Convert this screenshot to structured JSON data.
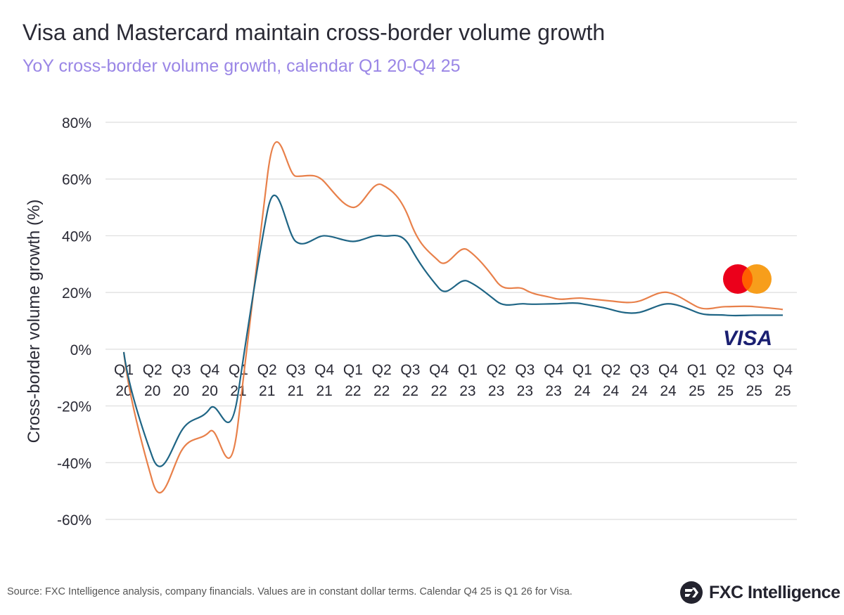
{
  "title": "Visa and Mastercard maintain cross-border volume growth",
  "subtitle": "YoY cross-border volume growth, calendar Q1 20-Q4 25",
  "source": "Source: FXC Intelligence analysis, company financials. Values are in constant dollar terms. Calendar Q4 25 is Q1 26 for Visa.",
  "brand": "FXC Intelligence",
  "chart_data": {
    "type": "line",
    "title": "Visa and Mastercard maintain cross-border volume growth",
    "ylabel": "Cross-border volume growth (%)",
    "xlabel": "",
    "ylim": [
      -60,
      80
    ],
    "yticks": [
      "80%",
      "60%",
      "40%",
      "20%",
      "0%",
      "-20%",
      "-40%",
      "-60%"
    ],
    "ytick_values": [
      80,
      60,
      40,
      20,
      0,
      -20,
      -40,
      -60
    ],
    "grid": true,
    "legend": "logos at right end of lines",
    "categories": [
      [
        "Q1",
        "20"
      ],
      [
        "Q2",
        "20"
      ],
      [
        "Q3",
        "20"
      ],
      [
        "Q4",
        "20"
      ],
      [
        "Q1",
        "21"
      ],
      [
        "Q2",
        "21"
      ],
      [
        "Q3",
        "21"
      ],
      [
        "Q4",
        "21"
      ],
      [
        "Q1",
        "22"
      ],
      [
        "Q2",
        "22"
      ],
      [
        "Q3",
        "22"
      ],
      [
        "Q4",
        "22"
      ],
      [
        "Q1",
        "23"
      ],
      [
        "Q2",
        "23"
      ],
      [
        "Q3",
        "23"
      ],
      [
        "Q4",
        "23"
      ],
      [
        "Q1",
        "24"
      ],
      [
        "Q2",
        "24"
      ],
      [
        "Q3",
        "24"
      ],
      [
        "Q4",
        "24"
      ],
      [
        "Q1",
        "25"
      ],
      [
        "Q2",
        "25"
      ],
      [
        "Q3",
        "25"
      ],
      [
        "Q4",
        "25"
      ]
    ],
    "series": [
      {
        "name": "Mastercard",
        "logo": "mastercard-logo",
        "color": "#e8804a",
        "values": [
          -1,
          -46.5,
          -36,
          -29,
          -25,
          60,
          61,
          59,
          50,
          58,
          45,
          31,
          35,
          24,
          21,
          18,
          18,
          17,
          17,
          20,
          15,
          15,
          15,
          14
        ]
      },
      {
        "name": "VISA",
        "logo": "visa-logo",
        "color": "#1f6585",
        "values": [
          -1,
          -38,
          -29,
          -21,
          -15,
          48,
          38,
          40,
          38,
          40,
          36,
          21.5,
          24,
          17,
          16,
          16,
          16,
          14,
          13,
          16,
          13,
          12,
          12,
          12
        ]
      }
    ]
  },
  "colors": {
    "grid": "#dddddd",
    "text": "#2a2a35",
    "subtitle": "#9a86e6",
    "mc_red": "#eb001b",
    "mc_yellow": "#f79e1b",
    "visa_blue": "#1a1f71"
  }
}
